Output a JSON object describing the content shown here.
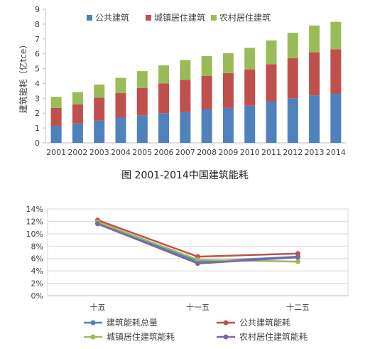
{
  "chart_data": [
    {
      "type": "bar",
      "stacked": true,
      "categories": [
        "2001",
        "2002",
        "2003",
        "2004",
        "2005",
        "2006",
        "2007",
        "2008",
        "2009",
        "2010",
        "2011",
        "2012",
        "2013",
        "2014"
      ],
      "series": [
        {
          "name": "公共建筑",
          "color": "#4F81BD",
          "values": [
            1.15,
            1.3,
            1.5,
            1.7,
            1.85,
            2.0,
            2.1,
            2.25,
            2.35,
            2.5,
            2.8,
            3.0,
            3.2,
            3.3
          ]
        },
        {
          "name": "城镇居住建筑",
          "color": "#C0504D",
          "values": [
            1.2,
            1.3,
            1.55,
            1.65,
            1.85,
            2.0,
            2.15,
            2.25,
            2.35,
            2.45,
            2.5,
            2.7,
            2.9,
            3.0
          ]
        },
        {
          "name": "农村居住建筑",
          "color": "#9BBB59",
          "values": [
            0.75,
            0.82,
            0.88,
            1.03,
            1.13,
            1.22,
            1.33,
            1.35,
            1.35,
            1.45,
            1.6,
            1.72,
            1.8,
            1.85
          ]
        }
      ],
      "ylabel": "建筑能耗（亿tce）",
      "ylim": [
        0,
        9
      ],
      "yticks": [
        "0",
        "1",
        "2",
        "3",
        "4",
        "5",
        "6",
        "7",
        "8",
        "9"
      ],
      "grid": false,
      "legend": "top"
    },
    {
      "type": "line",
      "categories": [
        "十五",
        "十一五",
        "十二五"
      ],
      "series": [
        {
          "name": "建筑能耗总量",
          "color": "#4F81BD",
          "values": [
            11.8,
            5.5,
            6.3
          ]
        },
        {
          "name": "公共建筑能耗",
          "color": "#C0504D",
          "values": [
            12.2,
            6.3,
            6.8
          ]
        },
        {
          "name": "城镇居住建筑能耗",
          "color": "#9BBB59",
          "values": [
            11.9,
            5.8,
            5.5
          ]
        },
        {
          "name": "农村居住建筑能耗",
          "color": "#8064A2",
          "values": [
            11.6,
            5.2,
            6.2
          ]
        }
      ],
      "ylim": [
        0,
        14
      ],
      "yticks": [
        "0%",
        "2%",
        "4%",
        "6%",
        "8%",
        "10%",
        "12%",
        "14%"
      ],
      "grid": true,
      "legend": "bottom"
    }
  ],
  "caption": "图   2001-2014中国建筑能耗"
}
